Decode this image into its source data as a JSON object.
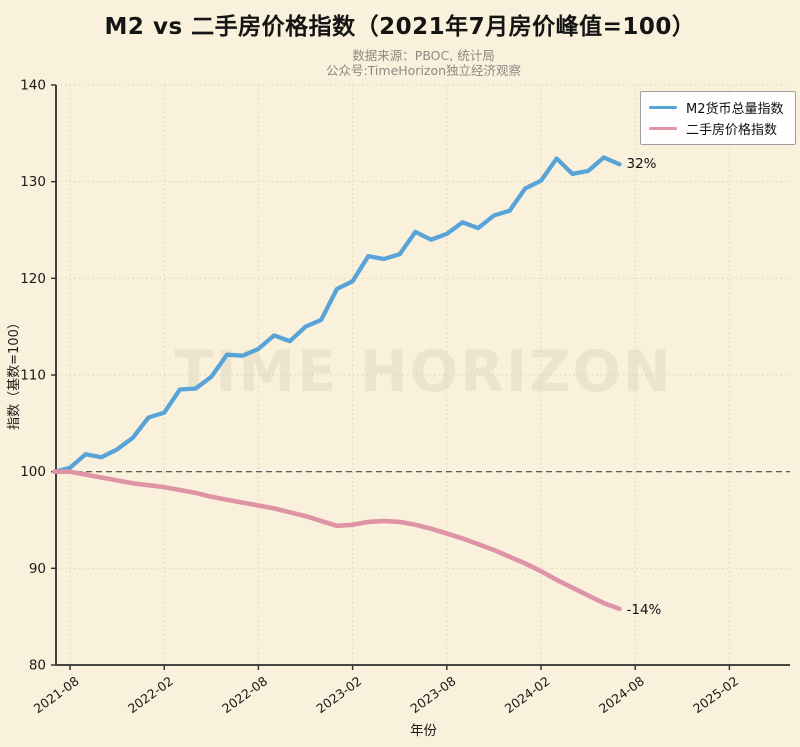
{
  "title": "M2 vs 二手房价格指数（2021年7月房价峰值=100）",
  "subtitle_line1": "数据来源：PBOC, 统计局",
  "subtitle_line2": "公众号:TimeHorizon独立经济观察",
  "watermark": "TIME HORIZON",
  "colors": {
    "background": "#FAF1DC",
    "m2_line": "#58A4D8",
    "house_line": "#DE93A7",
    "grid": "#DCCDA4",
    "baseline_dash": "#4A4A4A",
    "axis": "#2E2E2E",
    "title_text": "#141414",
    "subtitle_text": "#8B8B83",
    "legend_border": "#9E9E9E",
    "legend_bg": "#FFFFFF"
  },
  "chart_data": {
    "type": "line",
    "title": "M2 vs 二手房价格指数（2021年7月房价峰值=100）",
    "xlabel": "年份",
    "ylabel": "指数（基数=100）",
    "ylim": [
      80,
      140
    ],
    "yticks": [
      80,
      90,
      100,
      110,
      120,
      130,
      140
    ],
    "xticks": [
      "2021-08",
      "2022-02",
      "2022-08",
      "2023-02",
      "2023-08",
      "2024-02",
      "2024-08",
      "2025-02"
    ],
    "xlim": [
      "2021-07",
      "2025-06"
    ],
    "grid": true,
    "baseline": 100,
    "legend_position": "upper right",
    "x": [
      "2021-07",
      "2021-08",
      "2021-09",
      "2021-10",
      "2021-11",
      "2021-12",
      "2022-01",
      "2022-02",
      "2022-03",
      "2022-04",
      "2022-05",
      "2022-06",
      "2022-07",
      "2022-08",
      "2022-09",
      "2022-10",
      "2022-11",
      "2022-12",
      "2023-01",
      "2023-02",
      "2023-03",
      "2023-04",
      "2023-05",
      "2023-06",
      "2023-07",
      "2023-08",
      "2023-09",
      "2023-10",
      "2023-11",
      "2023-12",
      "2024-01",
      "2024-02",
      "2024-03",
      "2024-04",
      "2024-05",
      "2024-06",
      "2024-07"
    ],
    "series": [
      {
        "name": "M2货币总量指数",
        "color": "#58A4D8",
        "values": [
          100.0,
          100.4,
          101.8,
          101.5,
          102.3,
          103.5,
          105.6,
          106.1,
          108.5,
          108.6,
          109.8,
          112.1,
          112.0,
          112.7,
          114.1,
          113.5,
          115.0,
          115.7,
          118.9,
          119.7,
          122.3,
          122.0,
          122.5,
          124.8,
          124.0,
          124.6,
          125.8,
          125.2,
          126.5,
          127.0,
          129.3,
          130.1,
          132.4,
          130.8,
          131.1,
          132.5,
          131.8
        ]
      },
      {
        "name": "二手房价格指数",
        "color": "#DE93A7",
        "values": [
          100.0,
          100.0,
          99.7,
          99.4,
          99.1,
          98.8,
          98.6,
          98.4,
          98.1,
          97.8,
          97.4,
          97.1,
          96.8,
          96.5,
          96.2,
          95.8,
          95.4,
          94.9,
          94.4,
          94.5,
          94.8,
          94.9,
          94.8,
          94.5,
          94.1,
          93.6,
          93.1,
          92.5,
          91.9,
          91.2,
          90.5,
          89.7,
          88.8,
          88.0,
          87.2,
          86.4,
          85.8
        ]
      }
    ],
    "end_labels": [
      {
        "text": "32%",
        "series": "M2货币总量指数"
      },
      {
        "text": "-14%",
        "series": "二手房价格指数"
      }
    ]
  }
}
